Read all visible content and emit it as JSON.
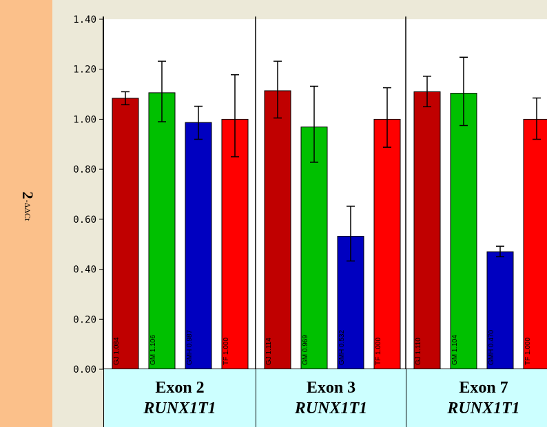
{
  "chart_data": {
    "type": "bar",
    "ylabel_main": "2",
    "ylabel_sup": "-ΔΔCt",
    "ylim": [
      0,
      1.4
    ],
    "yticks": [
      "0.00",
      "0.20",
      "0.40",
      "0.60",
      "0.80",
      "1.00",
      "1.20",
      "1.40"
    ],
    "grid": false,
    "series_colors": [
      "#c00000",
      "#00c000",
      "#0000c0",
      "#ff0000"
    ],
    "groups": [
      {
        "exon": "Exon 2",
        "gene": "RUNX1T1",
        "bars": [
          {
            "label": "GJ 1.084",
            "value": 1.084,
            "err_low": 1.058,
            "err_high": 1.11
          },
          {
            "label": "GM 1.106",
            "value": 1.106,
            "err_low": 0.99,
            "err_high": 1.232
          },
          {
            "label": "GMH 0.987",
            "value": 0.987,
            "err_low": 0.92,
            "err_high": 1.052
          },
          {
            "label": "TF 1.000",
            "value": 1.0,
            "err_low": 0.85,
            "err_high": 1.178
          }
        ]
      },
      {
        "exon": "Exon 3",
        "gene": "RUNX1T1",
        "bars": [
          {
            "label": "GJ 1.114",
            "value": 1.114,
            "err_low": 1.005,
            "err_high": 1.232
          },
          {
            "label": "GM 0.969",
            "value": 0.969,
            "err_low": 0.828,
            "err_high": 1.132
          },
          {
            "label": "GMH 0.532",
            "value": 0.532,
            "err_low": 0.433,
            "err_high": 0.652
          },
          {
            "label": "TF 1.000",
            "value": 1.0,
            "err_low": 0.888,
            "err_high": 1.126
          }
        ]
      },
      {
        "exon": "Exon 7",
        "gene": "RUNX1T1",
        "bars": [
          {
            "label": "GJ 1.110",
            "value": 1.11,
            "err_low": 1.05,
            "err_high": 1.172
          },
          {
            "label": "GM 1.104",
            "value": 1.104,
            "err_low": 0.975,
            "err_high": 1.248
          },
          {
            "label": "GMH 0.470",
            "value": 0.47,
            "err_low": 0.45,
            "err_high": 0.492
          },
          {
            "label": "TF 1.000",
            "value": 1.0,
            "err_low": 0.92,
            "err_high": 1.085
          }
        ]
      }
    ]
  }
}
